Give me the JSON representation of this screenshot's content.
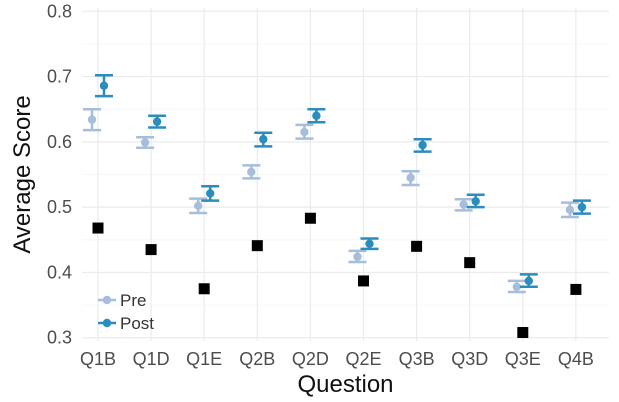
{
  "chart_data": {
    "type": "scatter",
    "title": "",
    "xlabel": "Question",
    "ylabel": "Average Score",
    "categories": [
      "Q1B",
      "Q1D",
      "Q1E",
      "Q2B",
      "Q2D",
      "Q2E",
      "Q3B",
      "Q3D",
      "Q3E",
      "Q4B"
    ],
    "ylim": [
      0.295,
      0.805
    ],
    "yticks": [
      0.3,
      0.4,
      0.5,
      0.6,
      0.7,
      0.8
    ],
    "ytick_labels": [
      "0.3",
      "0.4",
      "0.5",
      "0.6",
      "0.7",
      "0.8"
    ],
    "grid": true,
    "legend_position": "bottom-left",
    "series": [
      {
        "name": "Pre",
        "color": "#a6bddb",
        "marker": "circle",
        "values": [
          0.634,
          0.599,
          0.502,
          0.554,
          0.615,
          0.424,
          0.545,
          0.504,
          0.378,
          0.496
        ],
        "error_low": [
          0.618,
          0.591,
          0.491,
          0.544,
          0.605,
          0.416,
          0.534,
          0.495,
          0.37,
          0.485
        ],
        "error_high": [
          0.65,
          0.607,
          0.513,
          0.564,
          0.626,
          0.433,
          0.555,
          0.512,
          0.387,
          0.507
        ]
      },
      {
        "name": "Post",
        "color": "#2b8cbe",
        "marker": "circle",
        "values": [
          0.686,
          0.631,
          0.521,
          0.604,
          0.64,
          0.444,
          0.595,
          0.509,
          0.387,
          0.5
        ],
        "error_low": [
          0.67,
          0.622,
          0.51,
          0.593,
          0.63,
          0.436,
          0.585,
          0.5,
          0.378,
          0.49
        ],
        "error_high": [
          0.702,
          0.64,
          0.532,
          0.614,
          0.65,
          0.452,
          0.604,
          0.519,
          0.397,
          0.51
        ]
      },
      {
        "name": "",
        "color": "#000000",
        "marker": "square",
        "values": [
          0.468,
          0.435,
          0.375,
          0.441,
          0.483,
          0.387,
          0.44,
          0.415,
          0.308,
          0.374
        ]
      }
    ]
  }
}
